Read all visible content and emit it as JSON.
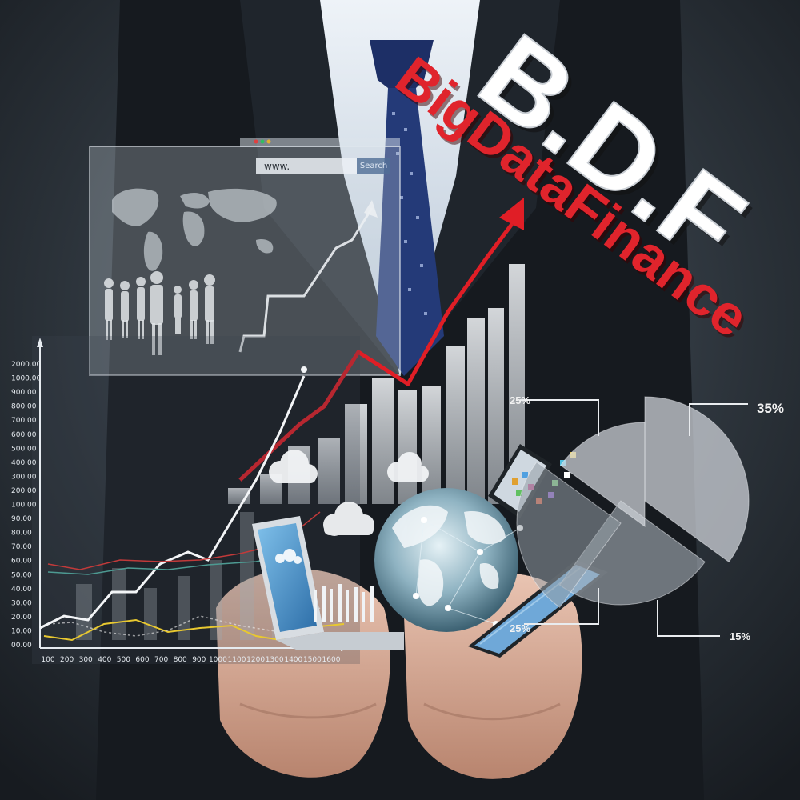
{
  "brand": {
    "logo": "B.D.F",
    "name": "BigDataFinance"
  },
  "browser": {
    "address": "www.",
    "search_label": "Search"
  },
  "icons": [
    "world-map-icon",
    "people-silhouettes-icon",
    "cloud-icon",
    "laptop-icon",
    "globe-icon",
    "tablet-icon",
    "smartphone-icon"
  ],
  "colors": {
    "background": "#1c2128",
    "suit": "#14181d",
    "trend_arrow": "#e01e26",
    "brand_red": "#e0242c",
    "logo_white": "#ffffff",
    "panel": "rgba(220,225,232,0.35)"
  },
  "chart_data": [
    {
      "type": "line",
      "y_ticks": [
        "00.00",
        "10.00",
        "20.00",
        "30.00",
        "40.00",
        "50.00",
        "60.00",
        "70.00",
        "80.00",
        "90.00",
        "100.00",
        "200.00",
        "300.00",
        "400.00",
        "500.00",
        "600.00",
        "700.00",
        "800.00",
        "900.00",
        "1000.00",
        "2000.00"
      ],
      "x_ticks": [
        "100",
        "200",
        "300",
        "400",
        "500",
        "600",
        "700",
        "800",
        "900",
        "1000",
        "1100",
        "1200",
        "1300",
        "1400",
        "1500",
        "1600"
      ]
    },
    {
      "type": "pie",
      "slices": [
        {
          "label": "35%",
          "value": 35
        },
        {
          "label": "25%",
          "value": 25
        },
        {
          "label": "25%",
          "value": 25
        },
        {
          "label": "15%",
          "value": 15
        }
      ]
    }
  ]
}
